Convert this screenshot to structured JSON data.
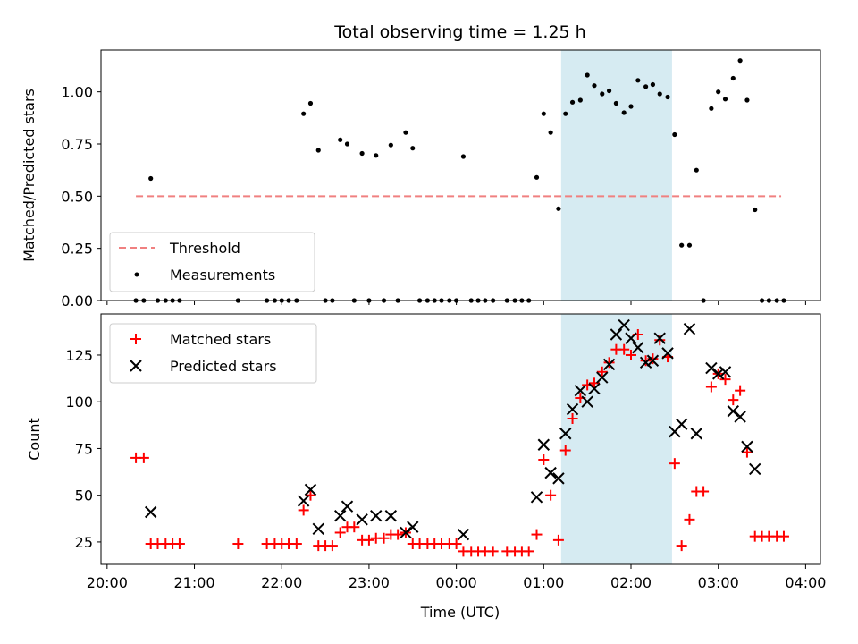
{
  "chart_data": [
    {
      "type": "scatter",
      "title": "Total observing time = 1.25 h",
      "xlabel": "",
      "ylabel": "Matched/Predicted stars",
      "xlim_hours": [
        19.93,
        28.17
      ],
      "ylim": [
        0,
        1.2
      ],
      "yticks": [
        0.0,
        0.25,
        0.5,
        0.75,
        1.0
      ],
      "ytick_labels": [
        "0.00",
        "0.25",
        "0.50",
        "0.75",
        "1.00"
      ],
      "grid": false,
      "legend_placement": "lower-left",
      "highlight_span_hours": [
        25.2,
        26.47
      ],
      "highlight_color": "#add8e6",
      "threshold": {
        "name": "Threshold",
        "value": 0.5,
        "x_range_hours": [
          20.33,
          27.72
        ],
        "color": "#f08080",
        "style": "dashed"
      },
      "series": [
        {
          "name": "Measurements",
          "color": "#000000",
          "marker": "dot",
          "points": [
            [
              20.33,
              0
            ],
            [
              20.42,
              0
            ],
            [
              20.5,
              0.585
            ],
            [
              20.58,
              0
            ],
            [
              20.67,
              0
            ],
            [
              20.75,
              0
            ],
            [
              20.83,
              0
            ],
            [
              21.5,
              0
            ],
            [
              21.83,
              0
            ],
            [
              21.92,
              0
            ],
            [
              22.0,
              0
            ],
            [
              22.08,
              0
            ],
            [
              22.17,
              0
            ],
            [
              22.25,
              0.895
            ],
            [
              22.33,
              0.945
            ],
            [
              22.42,
              0.72
            ],
            [
              22.5,
              0
            ],
            [
              22.58,
              0
            ],
            [
              22.67,
              0.77
            ],
            [
              22.75,
              0.75
            ],
            [
              22.83,
              0
            ],
            [
              22.92,
              0.705
            ],
            [
              23.0,
              0
            ],
            [
              23.08,
              0.695
            ],
            [
              23.17,
              0
            ],
            [
              23.25,
              0.745
            ],
            [
              23.33,
              0
            ],
            [
              23.42,
              0.805
            ],
            [
              23.5,
              0.73
            ],
            [
              23.58,
              0
            ],
            [
              23.67,
              0
            ],
            [
              23.75,
              0
            ],
            [
              23.83,
              0
            ],
            [
              23.92,
              0
            ],
            [
              24.0,
              0
            ],
            [
              24.08,
              0.69
            ],
            [
              24.17,
              0
            ],
            [
              24.25,
              0
            ],
            [
              24.33,
              0
            ],
            [
              24.42,
              0
            ],
            [
              24.58,
              0
            ],
            [
              24.67,
              0
            ],
            [
              24.75,
              0
            ],
            [
              24.83,
              0
            ],
            [
              24.92,
              0.59
            ],
            [
              25.0,
              0.895
            ],
            [
              25.08,
              0.805
            ],
            [
              25.17,
              0.44
            ],
            [
              25.25,
              0.895
            ],
            [
              25.33,
              0.95
            ],
            [
              25.42,
              0.96
            ],
            [
              25.5,
              1.08
            ],
            [
              25.58,
              1.03
            ],
            [
              25.67,
              0.99
            ],
            [
              25.75,
              1.005
            ],
            [
              25.83,
              0.945
            ],
            [
              25.92,
              0.9
            ],
            [
              26.0,
              0.93
            ],
            [
              26.08,
              1.055
            ],
            [
              26.17,
              1.025
            ],
            [
              26.25,
              1.035
            ],
            [
              26.33,
              0.99
            ],
            [
              26.42,
              0.975
            ],
            [
              26.5,
              0.795
            ],
            [
              26.58,
              0.265
            ],
            [
              26.67,
              0.265
            ],
            [
              26.75,
              0.625
            ],
            [
              26.83,
              0
            ],
            [
              26.92,
              0.92
            ],
            [
              27.0,
              1.0
            ],
            [
              27.08,
              0.965
            ],
            [
              27.17,
              1.065
            ],
            [
              27.25,
              1.15
            ],
            [
              27.33,
              0.96
            ],
            [
              27.42,
              0.435
            ],
            [
              27.5,
              0
            ],
            [
              27.58,
              0
            ],
            [
              27.67,
              0
            ],
            [
              27.75,
              0
            ]
          ]
        }
      ]
    },
    {
      "type": "scatter",
      "title": "",
      "xlabel": "Time (UTC)",
      "ylabel": "Count",
      "xlim_hours": [
        19.93,
        28.17
      ],
      "ylim": [
        13,
        147
      ],
      "yticks": [
        25,
        50,
        75,
        100,
        125
      ],
      "ytick_labels": [
        "25",
        "50",
        "75",
        "100",
        "125"
      ],
      "xticks_hours": [
        20,
        21,
        22,
        23,
        24,
        25,
        26,
        27,
        28
      ],
      "xtick_labels": [
        "20:00",
        "21:00",
        "22:00",
        "23:00",
        "00:00",
        "01:00",
        "02:00",
        "03:00",
        "04:00"
      ],
      "grid": false,
      "legend_placement": "upper-left",
      "highlight_span_hours": [
        25.2,
        26.47
      ],
      "highlight_color": "#add8e6",
      "series": [
        {
          "name": "Matched stars",
          "color": "#ff0000",
          "marker": "plus",
          "points": [
            [
              20.33,
              70
            ],
            [
              20.42,
              70
            ],
            [
              20.5,
              24
            ],
            [
              20.58,
              24
            ],
            [
              20.67,
              24
            ],
            [
              20.75,
              24
            ],
            [
              20.83,
              24
            ],
            [
              21.5,
              24
            ],
            [
              21.83,
              24
            ],
            [
              21.92,
              24
            ],
            [
              22.0,
              24
            ],
            [
              22.08,
              24
            ],
            [
              22.17,
              24
            ],
            [
              22.25,
              42
            ],
            [
              22.33,
              50
            ],
            [
              22.42,
              23
            ],
            [
              22.5,
              23
            ],
            [
              22.58,
              23
            ],
            [
              22.67,
              30
            ],
            [
              22.75,
              33
            ],
            [
              22.83,
              33
            ],
            [
              22.92,
              26
            ],
            [
              23.0,
              26
            ],
            [
              23.08,
              27
            ],
            [
              23.17,
              27
            ],
            [
              23.25,
              29
            ],
            [
              23.33,
              29
            ],
            [
              23.42,
              30
            ],
            [
              23.5,
              24
            ],
            [
              23.58,
              24
            ],
            [
              23.67,
              24
            ],
            [
              23.75,
              24
            ],
            [
              23.83,
              24
            ],
            [
              23.92,
              24
            ],
            [
              24.0,
              24
            ],
            [
              24.08,
              20
            ],
            [
              24.17,
              20
            ],
            [
              24.25,
              20
            ],
            [
              24.33,
              20
            ],
            [
              24.42,
              20
            ],
            [
              24.58,
              20
            ],
            [
              24.67,
              20
            ],
            [
              24.75,
              20
            ],
            [
              24.83,
              20
            ],
            [
              24.92,
              29
            ],
            [
              25.0,
              69
            ],
            [
              25.08,
              50
            ],
            [
              25.17,
              26
            ],
            [
              25.25,
              74
            ],
            [
              25.33,
              91
            ],
            [
              25.42,
              102
            ],
            [
              25.5,
              109
            ],
            [
              25.58,
              110
            ],
            [
              25.67,
              116
            ],
            [
              25.75,
              121
            ],
            [
              25.83,
              128
            ],
            [
              25.92,
              128
            ],
            [
              26.0,
              125
            ],
            [
              26.08,
              136
            ],
            [
              26.17,
              122
            ],
            [
              26.25,
              123
            ],
            [
              26.33,
              133
            ],
            [
              26.42,
              124
            ],
            [
              26.5,
              67
            ],
            [
              26.58,
              23
            ],
            [
              26.67,
              37
            ],
            [
              26.75,
              52
            ],
            [
              26.83,
              52
            ],
            [
              26.92,
              108
            ],
            [
              27.0,
              115
            ],
            [
              27.08,
              112
            ],
            [
              27.17,
              101
            ],
            [
              27.25,
              106
            ],
            [
              27.33,
              73
            ],
            [
              27.42,
              28
            ],
            [
              27.5,
              28
            ],
            [
              27.58,
              28
            ],
            [
              27.67,
              28
            ],
            [
              27.75,
              28
            ]
          ]
        },
        {
          "name": "Predicted stars",
          "color": "#000000",
          "marker": "x",
          "points": [
            [
              20.5,
              41
            ],
            [
              22.25,
              47
            ],
            [
              22.33,
              53
            ],
            [
              22.42,
              32
            ],
            [
              22.67,
              39
            ],
            [
              22.75,
              44
            ],
            [
              22.92,
              37
            ],
            [
              23.08,
              39
            ],
            [
              23.25,
              39
            ],
            [
              23.42,
              30
            ],
            [
              23.5,
              33
            ],
            [
              24.08,
              29
            ],
            [
              24.92,
              49
            ],
            [
              25.0,
              77
            ],
            [
              25.08,
              62
            ],
            [
              25.17,
              59
            ],
            [
              25.25,
              83
            ],
            [
              25.33,
              96
            ],
            [
              25.42,
              106
            ],
            [
              25.5,
              100
            ],
            [
              25.58,
              107
            ],
            [
              25.67,
              113
            ],
            [
              25.75,
              120
            ],
            [
              25.83,
              136
            ],
            [
              25.92,
              141
            ],
            [
              26.0,
              134
            ],
            [
              26.08,
              129
            ],
            [
              26.17,
              121
            ],
            [
              26.25,
              122
            ],
            [
              26.33,
              134
            ],
            [
              26.42,
              126
            ],
            [
              26.5,
              84
            ],
            [
              26.58,
              88
            ],
            [
              26.67,
              139
            ],
            [
              26.75,
              83
            ],
            [
              26.92,
              118
            ],
            [
              27.0,
              115
            ],
            [
              27.08,
              116
            ],
            [
              27.17,
              95
            ],
            [
              27.25,
              92
            ],
            [
              27.33,
              76
            ],
            [
              27.42,
              64
            ]
          ]
        }
      ]
    }
  ]
}
